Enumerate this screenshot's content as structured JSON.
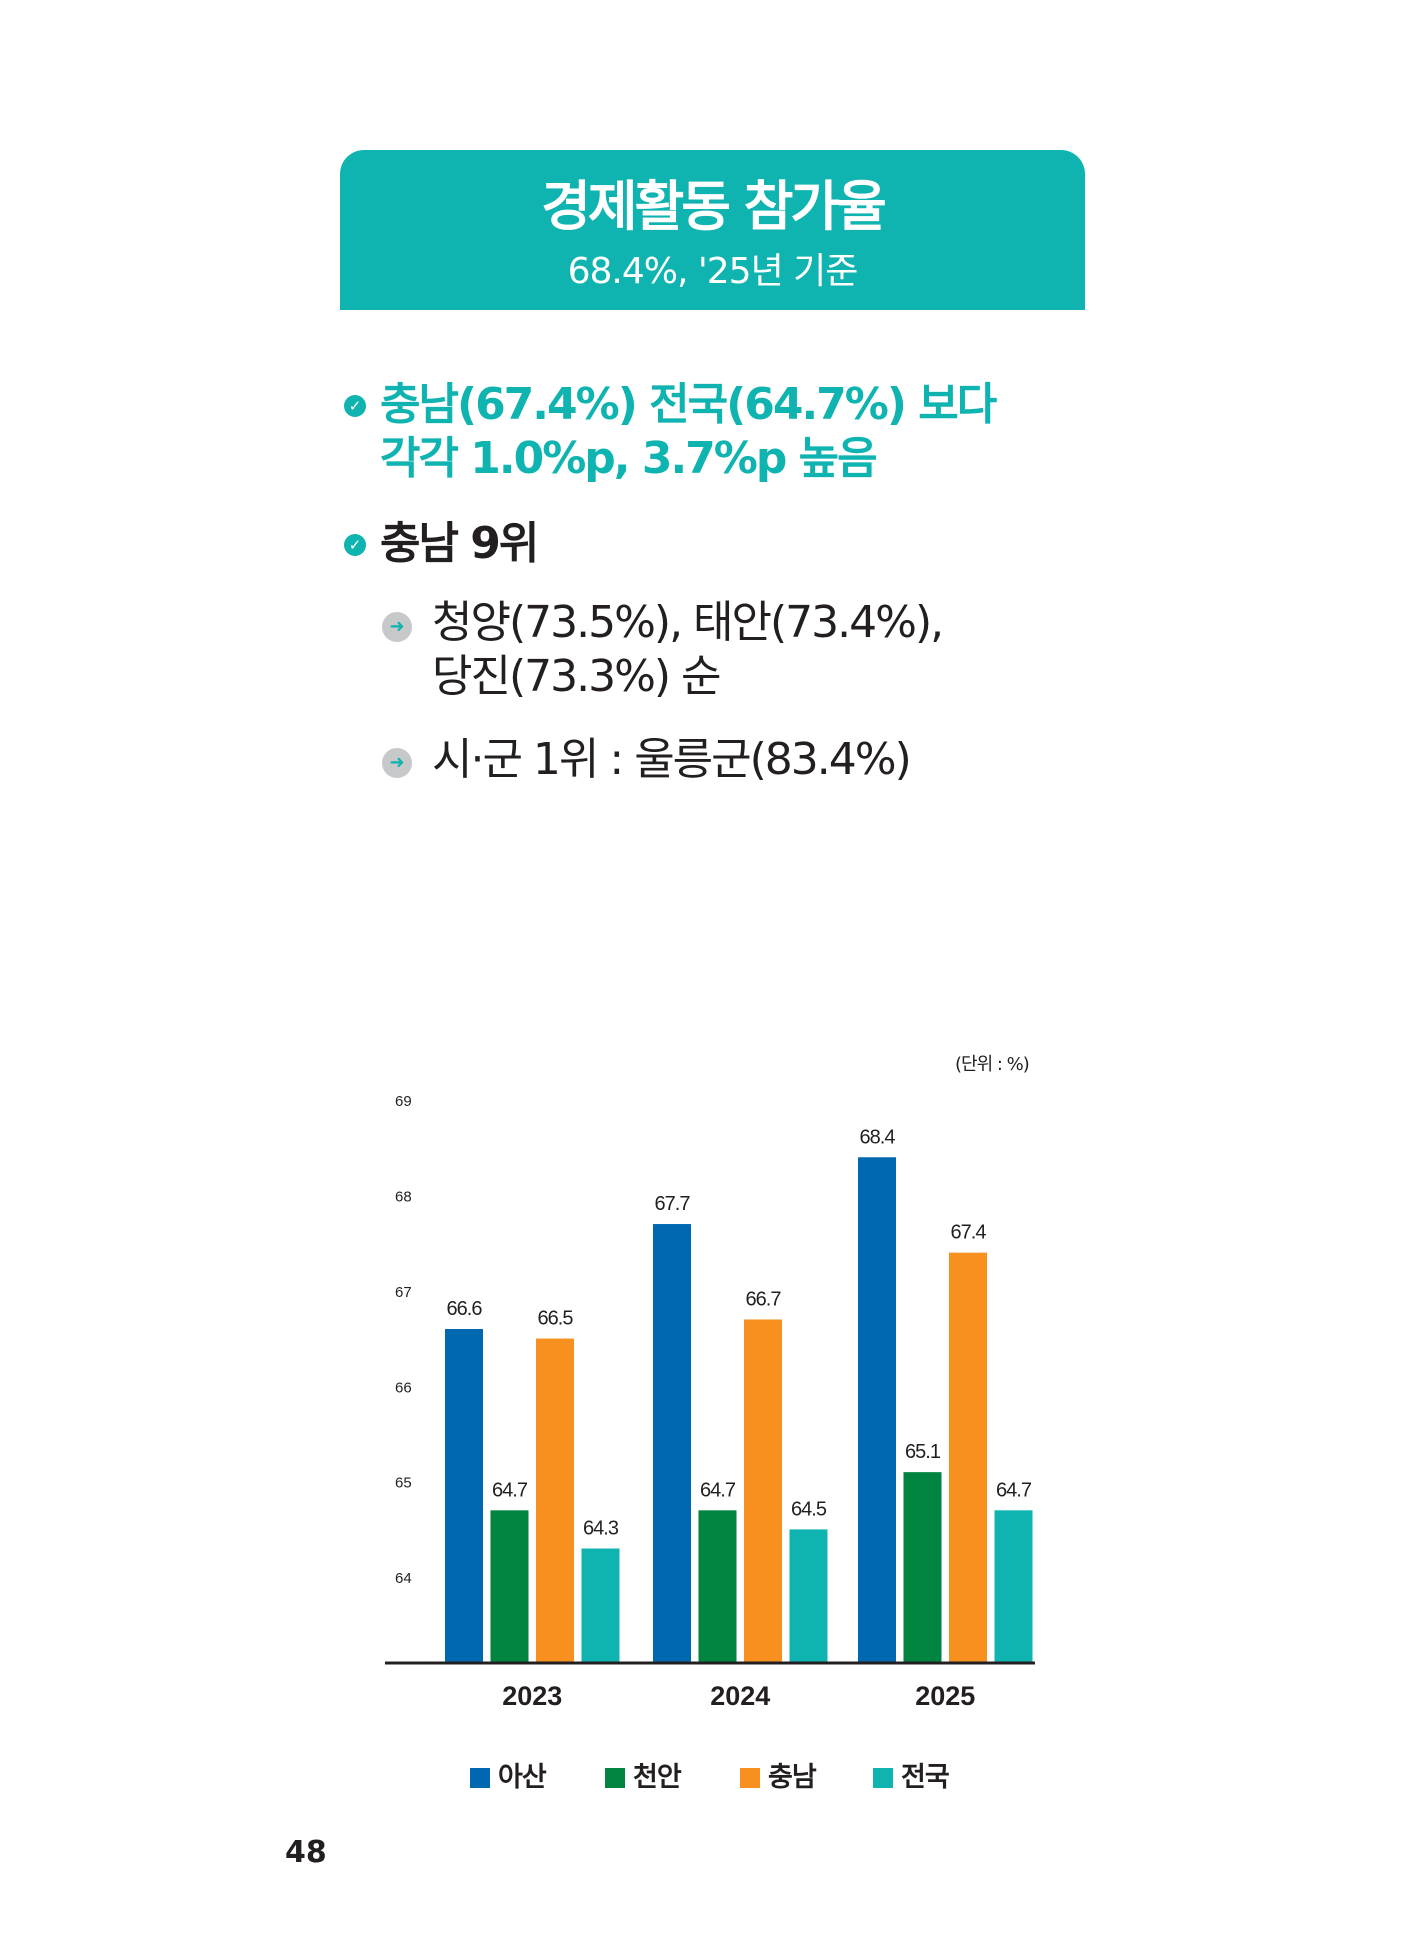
{
  "header": {
    "title": "경제활동 참가율",
    "subtitle": "68.4%, '25년 기준"
  },
  "bullets": [
    {
      "line1": "충남(67.4%) 전국(64.7%) 보다",
      "line2": "각각 1.0%p, 3.7%p 높음",
      "color": "#0fb3b0",
      "icon": "check-circle-icon"
    },
    {
      "line1": "충남 9위",
      "color": "#231f20",
      "icon": "check-circle-icon"
    }
  ],
  "sub_bullets": [
    {
      "line1": "청양(73.5%), 태안(73.4%),",
      "line2": "당진(73.3%) 순",
      "icon": "arrow-circle-icon"
    },
    {
      "line1": "시·군 1위 : 울릉군(83.4%)",
      "icon": "arrow-circle-icon"
    }
  ],
  "unit_label": "(단위 : %)",
  "page_number": "48",
  "chart_data": {
    "type": "bar",
    "categories": [
      "2023",
      "2024",
      "2025"
    ],
    "series": [
      {
        "name": "아산",
        "color": "#0067b1",
        "values": [
          66.6,
          67.7,
          68.4
        ]
      },
      {
        "name": "천안",
        "color": "#00843f",
        "values": [
          64.7,
          64.7,
          65.1
        ]
      },
      {
        "name": "충남",
        "color": "#f7901e",
        "values": [
          66.5,
          66.7,
          67.4
        ]
      },
      {
        "name": "전국",
        "color": "#0fb3b0",
        "values": [
          64.3,
          64.5,
          64.7
        ]
      }
    ],
    "yticks": [
      "64",
      "65",
      "66",
      "67",
      "68",
      "69"
    ],
    "ylim": [
      63.1,
      69
    ],
    "grid": false,
    "legend_position": "bottom"
  }
}
